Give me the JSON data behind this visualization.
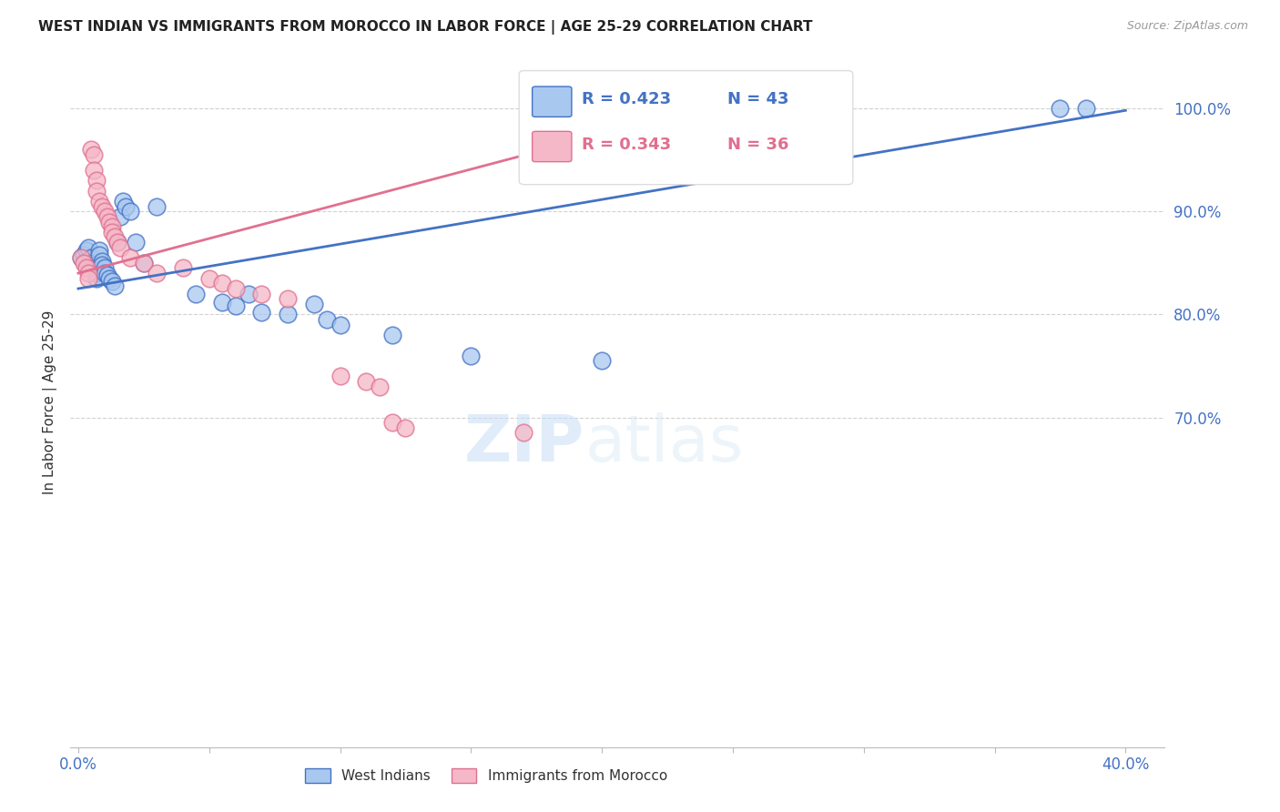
{
  "title": "WEST INDIAN VS IMMIGRANTS FROM MOROCCO IN LABOR FORCE | AGE 25-29 CORRELATION CHART",
  "source": "Source: ZipAtlas.com",
  "ylabel": "In Labor Force | Age 25-29",
  "x_min": -0.003,
  "x_max": 0.415,
  "y_min": 0.38,
  "y_max": 1.05,
  "blue_color": "#a8c8f0",
  "pink_color": "#f5b8c8",
  "blue_line_color": "#4472c4",
  "pink_line_color": "#e07090",
  "blue_label": "West Indians",
  "pink_label": "Immigrants from Morocco",
  "legend_blue_R": "R = 0.423",
  "legend_blue_N": "N = 43",
  "legend_pink_R": "R = 0.343",
  "legend_pink_N": "N = 36",
  "watermark_zip": "ZIP",
  "watermark_atlas": "atlas",
  "background_color": "#ffffff",
  "blue_scatter_x": [
    0.001,
    0.002,
    0.003,
    0.003,
    0.004,
    0.005,
    0.005,
    0.006,
    0.006,
    0.007,
    0.007,
    0.008,
    0.008,
    0.009,
    0.009,
    0.01,
    0.01,
    0.011,
    0.012,
    0.013,
    0.014,
    0.015,
    0.016,
    0.017,
    0.018,
    0.02,
    0.022,
    0.025,
    0.03,
    0.045,
    0.055,
    0.06,
    0.065,
    0.07,
    0.08,
    0.09,
    0.095,
    0.1,
    0.12,
    0.15,
    0.2,
    0.375,
    0.385
  ],
  "blue_scatter_y": [
    0.855,
    0.858,
    0.862,
    0.852,
    0.865,
    0.855,
    0.85,
    0.848,
    0.845,
    0.84,
    0.835,
    0.862,
    0.858,
    0.852,
    0.848,
    0.845,
    0.84,
    0.838,
    0.835,
    0.832,
    0.828,
    0.87,
    0.895,
    0.91,
    0.905,
    0.9,
    0.87,
    0.85,
    0.905,
    0.82,
    0.812,
    0.808,
    0.82,
    0.802,
    0.8,
    0.81,
    0.795,
    0.79,
    0.78,
    0.76,
    0.755,
    1.0,
    1.0
  ],
  "pink_scatter_x": [
    0.001,
    0.002,
    0.003,
    0.004,
    0.004,
    0.005,
    0.006,
    0.006,
    0.007,
    0.007,
    0.008,
    0.009,
    0.01,
    0.011,
    0.012,
    0.013,
    0.013,
    0.014,
    0.015,
    0.016,
    0.02,
    0.025,
    0.03,
    0.04,
    0.05,
    0.055,
    0.06,
    0.12,
    0.125,
    0.1,
    0.11,
    0.115,
    0.07,
    0.08,
    0.17,
    0.22
  ],
  "pink_scatter_y": [
    0.855,
    0.85,
    0.845,
    0.84,
    0.835,
    0.96,
    0.955,
    0.94,
    0.93,
    0.92,
    0.91,
    0.905,
    0.9,
    0.895,
    0.89,
    0.885,
    0.88,
    0.875,
    0.87,
    0.865,
    0.855,
    0.85,
    0.84,
    0.845,
    0.835,
    0.83,
    0.825,
    0.695,
    0.69,
    0.74,
    0.735,
    0.73,
    0.82,
    0.815,
    0.685,
    1.0
  ],
  "blue_line_x": [
    0.0,
    0.4
  ],
  "blue_line_y": [
    0.825,
    0.998
  ],
  "pink_line_x": [
    0.0,
    0.22
  ],
  "pink_line_y": [
    0.84,
    0.988
  ]
}
